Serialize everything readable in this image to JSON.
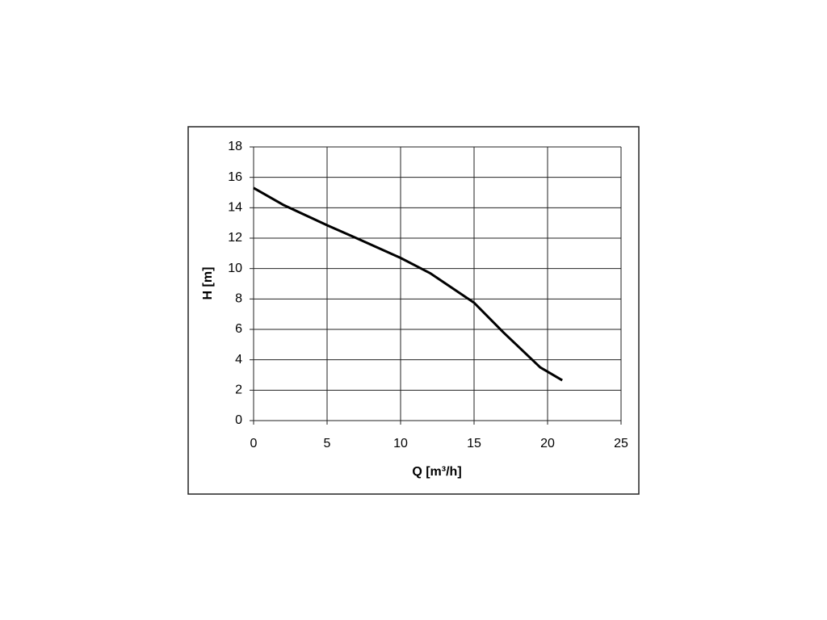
{
  "chart_data": {
    "type": "line",
    "x_label": "Q [m³/h]",
    "y_label": "H [m]",
    "x": [
      0,
      2,
      5,
      7,
      10,
      12,
      15,
      17,
      19.5,
      21
    ],
    "series": [
      {
        "color": "#000000",
        "values": [
          15.3,
          14.2,
          12.85,
          12.0,
          10.7,
          9.7,
          7.75,
          5.8,
          3.5,
          2.65
        ]
      }
    ],
    "xlim": [
      0,
      25
    ],
    "xticks": [
      0,
      5,
      10,
      15,
      20,
      25
    ],
    "ylim": [
      0,
      18
    ],
    "yticks": [
      0,
      2,
      4,
      6,
      8,
      10,
      12,
      14,
      16,
      18
    ],
    "grid": true
  }
}
